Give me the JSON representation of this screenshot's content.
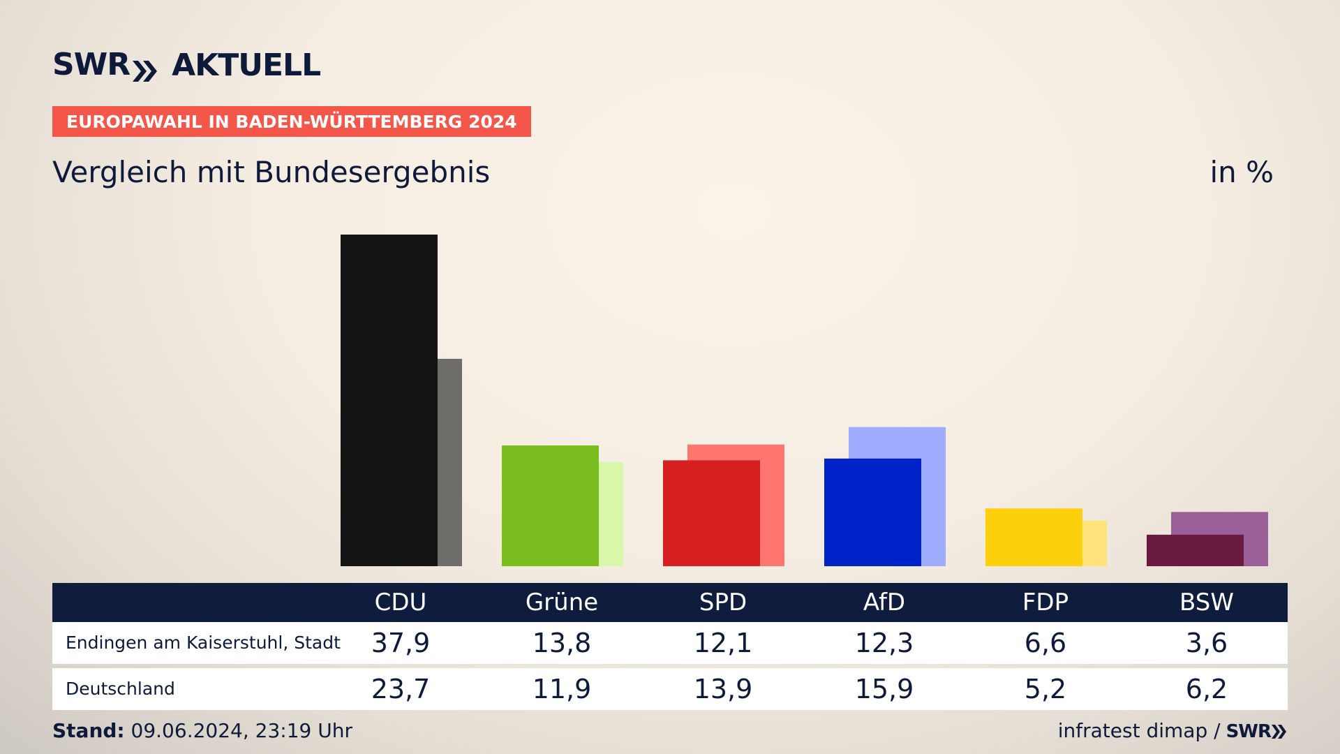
{
  "brand": {
    "swr": "SWR",
    "aktuell": "AKTUELL"
  },
  "tag": "EUROPAWAHL IN BADEN-WÜRTTEMBERG 2024",
  "title": "Vergleich mit Bundesergebnis",
  "unit": "in %",
  "chart_data": {
    "type": "bar",
    "categories": [
      "CDU",
      "Grüne",
      "SPD",
      "AfD",
      "FDP",
      "BSW"
    ],
    "series": [
      {
        "name": "Endingen am Kaiserstuhl, Stadt",
        "values": [
          37.9,
          13.8,
          12.1,
          12.3,
          6.6,
          3.6
        ]
      },
      {
        "name": "Deutschland",
        "values": [
          23.7,
          11.9,
          13.9,
          15.9,
          5.2,
          6.2
        ]
      }
    ],
    "display_values": [
      [
        "37,9",
        "13,8",
        "12,1",
        "12,3",
        "6,6",
        "3,6"
      ],
      [
        "23,7",
        "11,9",
        "13,9",
        "15,9",
        "5,2",
        "6,2"
      ]
    ],
    "colors_primary": [
      "#141414",
      "#79be1e",
      "#d61f1f",
      "#0023c9",
      "#fdcf0c",
      "#6a1a3f"
    ],
    "colors_secondary": [
      "#6f6d6a",
      "#d9f7a8",
      "#ff7670",
      "#9eabff",
      "#ffe27a",
      "#9b5f98"
    ],
    "ylim": [
      0,
      40
    ]
  },
  "table": {
    "rows": [
      {
        "label": "Endingen am Kaiserstuhl, Stadt"
      },
      {
        "label": "Deutschland"
      }
    ]
  },
  "footer": {
    "stand_label": "Stand:",
    "stand_value": "09.06.2024, 23:19 Uhr",
    "source": "infratest dimap /",
    "swr": "SWR"
  }
}
